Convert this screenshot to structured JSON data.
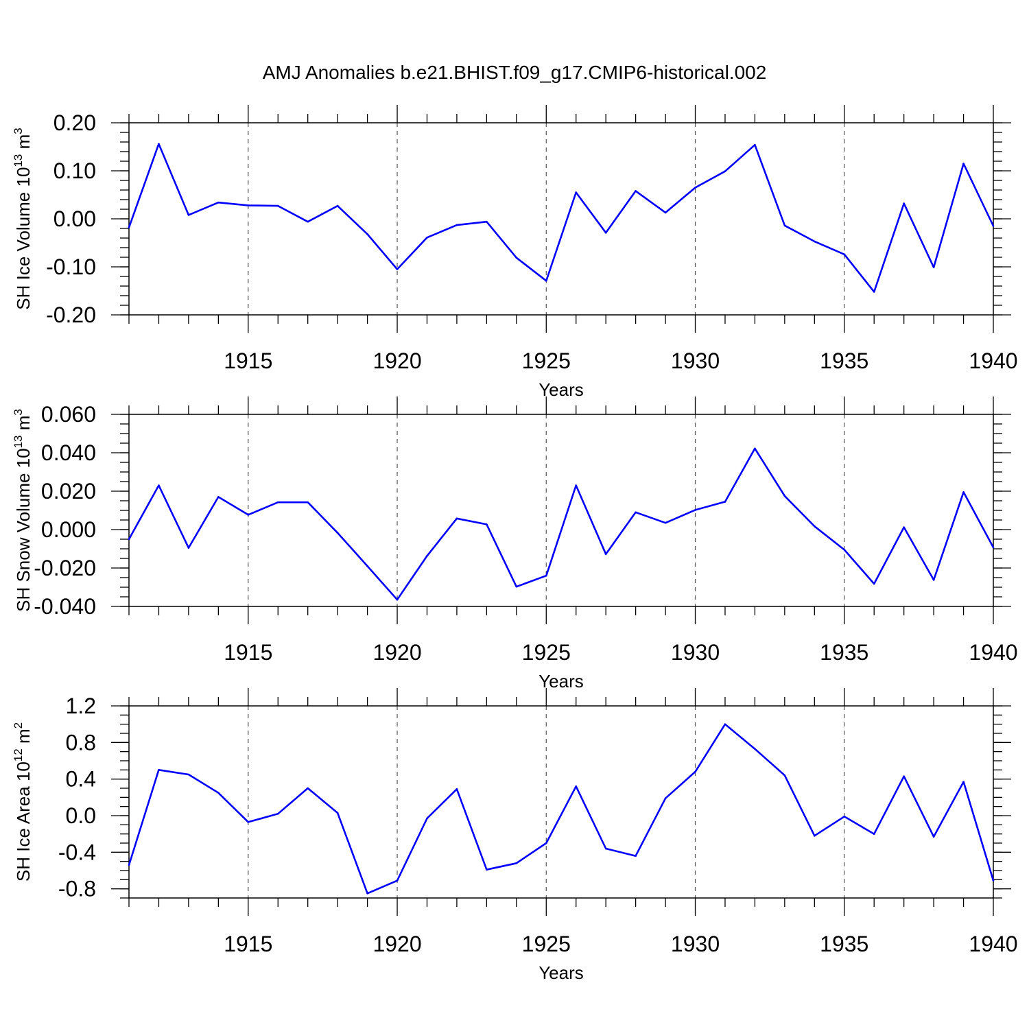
{
  "figure": {
    "title": "AMJ Anomalies b.e21.BHIST.f09_g17.CMIP6-historical.002",
    "line_color": "#0000ff"
  },
  "chart_data": [
    {
      "type": "line",
      "title": "AMJ Anomalies b.e21.BHIST.f09_g17.CMIP6-historical.002",
      "xlabel": "Years",
      "ylabel": "SH Ice Volume 10",
      "ylabel_sup1": "13",
      "ylabel_unit": " m",
      "ylabel_sup2": "3",
      "xlim": [
        1911,
        1940
      ],
      "ylim": [
        -0.2,
        0.2
      ],
      "x_ticks": [
        1915,
        1920,
        1925,
        1930,
        1935,
        1940
      ],
      "y_ticks": [
        0.2,
        0.1,
        0.0,
        -0.1,
        -0.2
      ],
      "y_tick_labels": [
        "0.20",
        "0.10",
        "0.00",
        "-0.10",
        "-0.20"
      ],
      "y_minor_step": 0.02,
      "grid": "vertical dashed at x ticks",
      "x": [
        1911,
        1912,
        1913,
        1914,
        1915,
        1916,
        1917,
        1918,
        1919,
        1920,
        1921,
        1922,
        1923,
        1924,
        1925,
        1926,
        1927,
        1928,
        1929,
        1930,
        1931,
        1932,
        1933,
        1934,
        1935,
        1936,
        1937,
        1938,
        1939,
        1940
      ],
      "values": [
        -0.018,
        0.156,
        0.008,
        0.034,
        0.028,
        0.027,
        -0.006,
        0.027,
        -0.032,
        -0.105,
        -0.039,
        -0.013,
        -0.006,
        -0.081,
        -0.129,
        0.055,
        -0.029,
        0.058,
        0.013,
        0.065,
        0.099,
        0.154,
        -0.014,
        -0.047,
        -0.074,
        -0.152,
        0.032,
        -0.101,
        0.115,
        -0.015
      ]
    },
    {
      "type": "line",
      "xlabel": "Years",
      "ylabel": "SH Snow Volume 10",
      "ylabel_sup1": "13",
      "ylabel_unit": " m",
      "ylabel_sup2": "3",
      "xlim": [
        1911,
        1940
      ],
      "ylim": [
        -0.04,
        0.06
      ],
      "x_ticks": [
        1915,
        1920,
        1925,
        1930,
        1935,
        1940
      ],
      "y_ticks": [
        0.06,
        0.04,
        0.02,
        0.0,
        -0.02,
        -0.04
      ],
      "y_tick_labels": [
        "0.060",
        "0.040",
        "0.020",
        "0.000",
        "-0.020",
        "-0.040"
      ],
      "y_minor_step": 0.005,
      "grid": "vertical dashed at x ticks",
      "x": [
        1911,
        1912,
        1913,
        1914,
        1915,
        1916,
        1917,
        1918,
        1919,
        1920,
        1921,
        1922,
        1923,
        1924,
        1925,
        1926,
        1927,
        1928,
        1929,
        1930,
        1931,
        1932,
        1933,
        1934,
        1935,
        1936,
        1937,
        1938,
        1939,
        1940
      ],
      "values": [
        -0.005,
        0.023,
        -0.0095,
        0.017,
        0.0077,
        0.0142,
        0.0142,
        -0.0017,
        -0.019,
        -0.0365,
        -0.0137,
        0.0058,
        0.0027,
        -0.0297,
        -0.024,
        0.023,
        -0.0128,
        0.009,
        0.0035,
        0.0102,
        0.0145,
        0.0422,
        0.0175,
        0.0017,
        -0.0105,
        -0.0282,
        0.0012,
        -0.0262,
        0.0195,
        -0.0093
      ]
    },
    {
      "type": "line",
      "xlabel": "Years",
      "ylabel": "SH Ice Area 10",
      "ylabel_sup1": "12",
      "ylabel_unit": " m",
      "ylabel_sup2": "2",
      "xlim": [
        1911,
        1940
      ],
      "ylim": [
        -0.9,
        1.2
      ],
      "x_ticks": [
        1915,
        1920,
        1925,
        1930,
        1935,
        1940
      ],
      "y_ticks": [
        1.2,
        0.8,
        0.4,
        0.0,
        -0.4,
        -0.8
      ],
      "y_tick_labels": [
        "1.2",
        "0.8",
        "0.4",
        "0.0",
        "-0.4",
        "-0.8"
      ],
      "y_minor_step": 0.1,
      "grid": "vertical dashed at x ticks",
      "x": [
        1911,
        1912,
        1913,
        1914,
        1915,
        1916,
        1917,
        1918,
        1919,
        1920,
        1921,
        1922,
        1923,
        1924,
        1925,
        1926,
        1927,
        1928,
        1929,
        1930,
        1931,
        1932,
        1933,
        1934,
        1935,
        1936,
        1937,
        1938,
        1939,
        1940
      ],
      "values": [
        -0.54,
        0.5,
        0.45,
        0.25,
        -0.07,
        0.02,
        0.3,
        0.03,
        -0.85,
        -0.71,
        -0.03,
        0.29,
        -0.59,
        -0.52,
        -0.3,
        0.32,
        -0.36,
        -0.44,
        0.19,
        0.48,
        1.0,
        0.73,
        0.44,
        -0.22,
        -0.01,
        -0.2,
        0.43,
        -0.23,
        0.37,
        -0.71
      ]
    }
  ]
}
